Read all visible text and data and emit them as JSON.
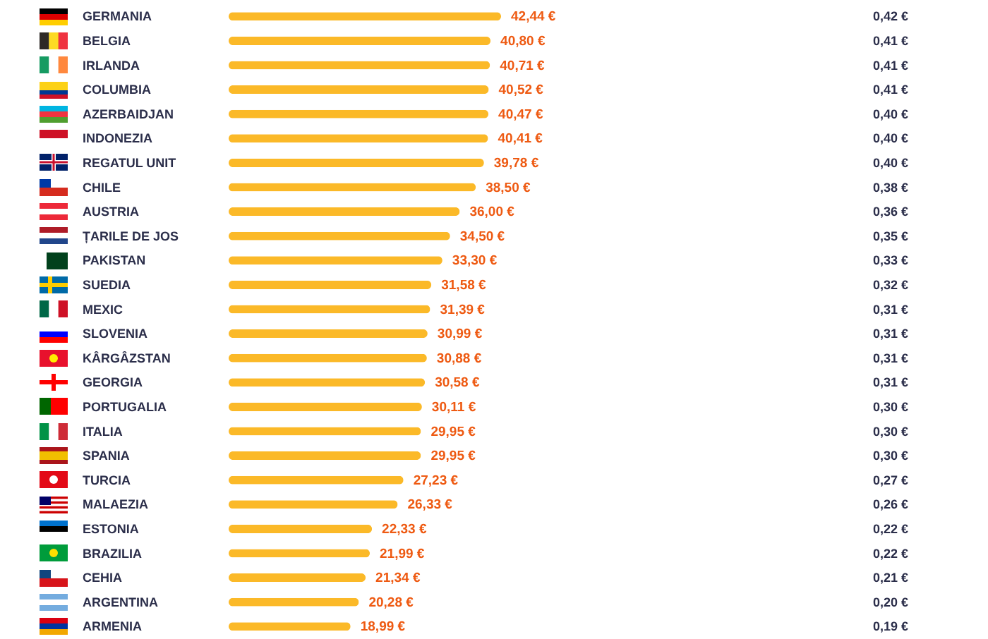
{
  "chart_data": {
    "type": "bar",
    "orientation": "horizontal",
    "color": "#fbb928",
    "categories": [
      "GERMANIA",
      "BELGIA",
      "IRLANDA",
      "COLUMBIA",
      "AZERBAIDJAN",
      "INDONEZIA",
      "REGATUL UNIT",
      "CHILE",
      "AUSTRIA",
      "ȚARILE DE JOS",
      "PAKISTAN",
      "SUEDIA",
      "MEXIC",
      "SLOVENIA",
      "KÂRGÂZSTAN",
      "GEORGIA",
      "PORTUGALIA",
      "ITALIA",
      "SPANIA",
      "TURCIA",
      "MALAEZIA",
      "ESTONIA",
      "BRAZILIA",
      "CEHIA",
      "ARGENTINA",
      "ARMENIA"
    ],
    "values": [
      42.44,
      40.8,
      40.71,
      40.52,
      40.47,
      40.41,
      39.78,
      38.5,
      36.0,
      34.5,
      33.3,
      31.58,
      31.39,
      30.99,
      30.88,
      30.58,
      30.11,
      29.95,
      29.95,
      27.23,
      26.33,
      22.33,
      21.99,
      21.34,
      20.28,
      18.99
    ],
    "value_labels": [
      "42,44 €",
      "40,80 €",
      "40,71 €",
      "40,52 €",
      "40,47 €",
      "40,41 €",
      "39,78 €",
      "38,50 €",
      "36,00 €",
      "34,50 €",
      "33,30 €",
      "31,58 €",
      "31,39 €",
      "30,99 €",
      "30,88 €",
      "30,58 €",
      "30,11 €",
      "29,95 €",
      "29,95 €",
      "27,23 €",
      "26,33 €",
      "22,33 €",
      "21,99 €",
      "21,34 €",
      "20,28 €",
      "18,99 €"
    ],
    "annotations": [
      "0,42 €",
      "0,41 €",
      "0,41 €",
      "0,41 €",
      "0,40 €",
      "0,40 €",
      "0,40 €",
      "0,38 €",
      "0,36 €",
      "0,35 €",
      "0,33 €",
      "0,32 €",
      "0,31 €",
      "0,31 €",
      "0,31 €",
      "0,31 €",
      "0,30 €",
      "0,30 €",
      "0,30 €",
      "0,27 €",
      "0,26 €",
      "0,22 €",
      "0,22 €",
      "0,21 €",
      "0,20 €",
      "0,19 €"
    ]
  }
}
